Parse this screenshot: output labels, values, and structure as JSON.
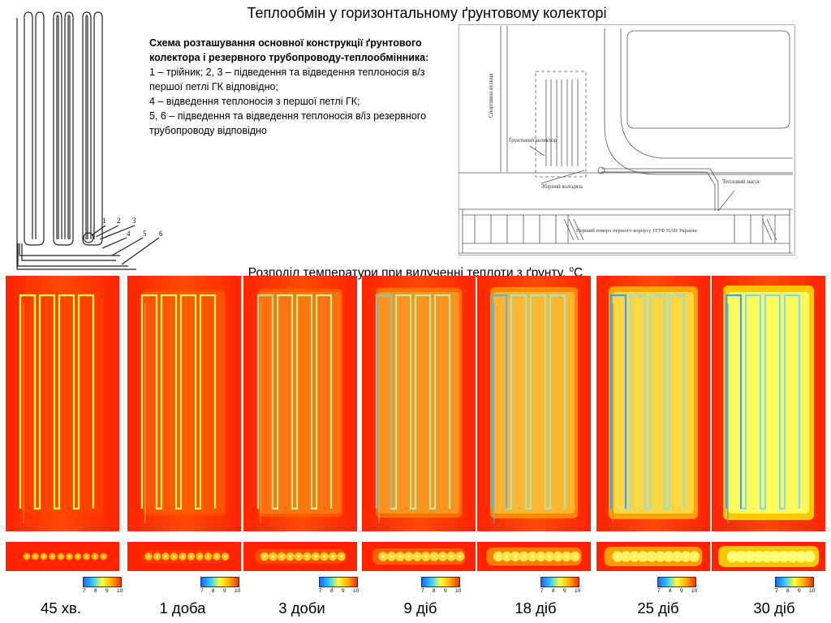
{
  "title": "Теплообмін у горизонтальному ґрунтовому колекторі",
  "legend": {
    "heading": "Схема розташування основної конструкції ґрунтового колектора і резервного трубопроводу-теплообмінника:",
    "lines": [
      "1 – трійник; 2, 3 – підведення та відведення теплоносія в/з першої петлі ГК відповідно;",
      "4 – відведення теплоносія з першої петлі ГК;",
      "5, 6 – підведення та відведення теплоносія в/із резервного трубопроводу відповідно"
    ]
  },
  "schematic": {
    "labels": [
      "1",
      "2",
      "3",
      "4",
      "5",
      "6"
    ]
  },
  "site_plan": {
    "street": "Спортивна вулиця",
    "collector": "Ґрунтовий колектор",
    "well": "Збірний колодязь",
    "pump": "Тепловий насос",
    "building": "Перший поверх першого корпусу ІТТФ НАН України"
  },
  "distribution_title": "Розподіл температури при вилученні теплоти з ґрунту,",
  "distribution_unit_sup": "o",
  "distribution_unit": "C",
  "colorbar": {
    "ticks": [
      "7",
      "8",
      "9",
      "10"
    ],
    "colors": [
      "#1a66ff",
      "#33ccff",
      "#ffff40",
      "#ffb000",
      "#ff2a00"
    ]
  },
  "panels": [
    {
      "label": "45 хв.",
      "level": 0.0
    },
    {
      "label": "1 доба",
      "level": 0.17
    },
    {
      "label": "3 доби",
      "level": 0.35
    },
    {
      "label": "9 діб",
      "level": 0.52
    },
    {
      "label": "18 діб",
      "level": 0.68
    },
    {
      "label": "25 діб",
      "level": 0.83
    },
    {
      "label": "30 діб",
      "level": 1.0
    }
  ]
}
